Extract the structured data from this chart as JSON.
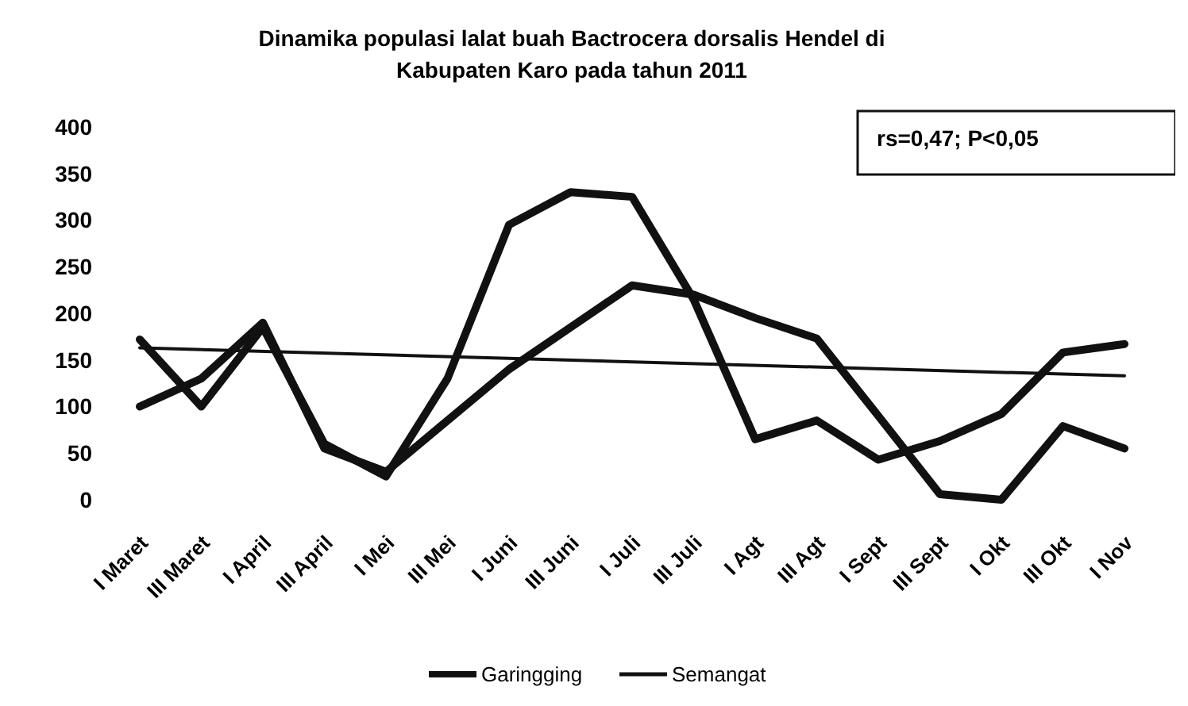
{
  "chart_data": {
    "type": "line",
    "title": "Dinamika populasi lalat buah Bactrocera dorsalis Hendel di Kabupaten Karo pada tahun 2011",
    "categories": [
      "I Maret",
      "III Maret",
      "I April",
      "III April",
      "I Mei",
      "III Mei",
      "I Juni",
      "III Juni",
      "I Juli",
      "III Juli",
      "I Agt",
      "III Agt",
      "I Sept",
      "III Sept",
      "I Okt",
      "III Okt",
      "I Nov"
    ],
    "series": [
      {
        "name": "Garingging",
        "color": "#111111",
        "values": [
          172,
          100,
          185,
          60,
          25,
          130,
          295,
          330,
          325,
          215,
          65,
          85,
          43,
          63,
          92,
          158,
          167
        ]
      },
      {
        "name": "Semangat",
        "color": "#111111",
        "values": [
          100,
          130,
          190,
          55,
          30,
          85,
          140,
          185,
          230,
          220,
          195,
          173,
          90,
          6,
          0,
          79,
          55
        ]
      },
      {
        "type": "line",
        "color": "#111111",
        "x": [
          "I Maret",
          "I Nov"
        ],
        "values": [
          163,
          133
        ]
      }
    ],
    "ylim": [
      0,
      400
    ],
    "yticks": [
      0,
      50,
      100,
      150,
      200,
      250,
      300,
      350,
      400
    ],
    "legend": "bottom",
    "grid": false,
    "annotations": [
      "rs=0,47; P<0,05"
    ]
  }
}
